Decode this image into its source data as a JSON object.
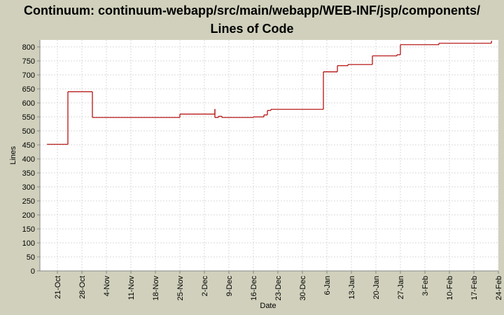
{
  "chart_data": {
    "type": "step",
    "title": "Continuum: continuum-webapp/src/main/webapp/WEB-INF/jsp/components/\nLines of Code",
    "xlabel": "Date",
    "ylabel": "Lines",
    "x": [
      "18-Oct",
      "24-Oct",
      "31-Oct",
      "25-Nov",
      "5-Dec",
      "5-Dec",
      "6-Dec",
      "7-Dec",
      "16-Dec",
      "19-Dec",
      "20-Dec",
      "21-Dec",
      "5-Jan",
      "9-Jan",
      "12-Jan",
      "19-Jan",
      "26-Jan",
      "27-Jan",
      "7-Feb",
      "22-Feb"
    ],
    "series": [
      {
        "color": "#b00000",
        "values": [
          452,
          640,
          548,
          560,
          578,
          548,
          552,
          548,
          550,
          557,
          573,
          577,
          711,
          733,
          737,
          768,
          772,
          808,
          813,
          820
        ]
      }
    ],
    "xlim": [
      "16-Oct",
      "24-Feb"
    ],
    "xticks": [
      "21-Oct",
      "28-Oct",
      "4-Nov",
      "11-Nov",
      "18-Nov",
      "25-Nov",
      "2-Dec",
      "9-Dec",
      "16-Dec",
      "23-Dec",
      "30-Dec",
      "6-Jan",
      "13-Jan",
      "20-Jan",
      "27-Jan",
      "3-Feb",
      "10-Feb",
      "17-Feb",
      "24-Feb"
    ],
    "ylim": [
      0,
      825
    ],
    "yticks": [
      0,
      50,
      100,
      150,
      200,
      250,
      300,
      350,
      400,
      450,
      500,
      550,
      600,
      650,
      700,
      750,
      800
    ],
    "grid": true
  }
}
